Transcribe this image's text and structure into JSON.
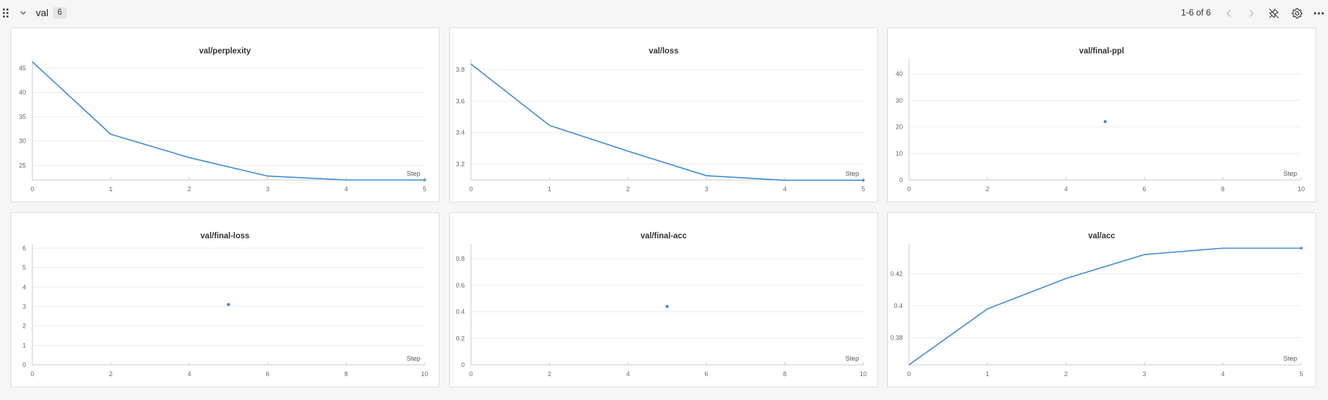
{
  "section": {
    "title": "val",
    "count": "6",
    "pagination": "1-6 of 6",
    "icons": {
      "drag": "drag-handle-icon",
      "collapse": "chevron-down-icon",
      "prev": "chevron-left-icon",
      "next": "chevron-right-icon",
      "pin": "pin-off-icon",
      "settings": "gear-icon",
      "more": "more-horizontal-icon"
    }
  },
  "colors": {
    "line": "#3b8ad9",
    "grid": "#ececec",
    "axis": "#c8c8c8",
    "text": "#666666"
  },
  "charts": [
    {
      "title": "val/perplexity",
      "chart_data": {
        "type": "line",
        "title": "val/perplexity",
        "xlabel": "Step",
        "ylabel": "",
        "xlim": [
          0,
          5
        ],
        "ylim": [
          22,
          46
        ],
        "xticks": [
          0,
          1,
          2,
          3,
          4,
          5
        ],
        "yticks": [
          25,
          30,
          35,
          40,
          45
        ],
        "series": [
          {
            "x": [
              0,
              1,
              2,
              3,
              4,
              5
            ],
            "values": [
              46.3,
              31.4,
              26.6,
              22.8,
              22.0,
              22.0
            ]
          }
        ]
      }
    },
    {
      "title": "val/loss",
      "chart_data": {
        "type": "line",
        "title": "val/loss",
        "xlabel": "Step",
        "ylabel": "",
        "xlim": [
          0,
          5
        ],
        "ylim": [
          3.1,
          3.84
        ],
        "xticks": [
          0,
          1,
          2,
          3,
          4,
          5
        ],
        "yticks": [
          3.2,
          3.4,
          3.6,
          3.8
        ],
        "ytick_labels": [
          "3.2",
          "3.4",
          "3.6",
          "3.8"
        ],
        "series": [
          {
            "x": [
              0,
              1,
              2,
              3,
              4,
              5
            ],
            "values": [
              3.835,
              3.446,
              3.283,
              3.127,
              3.098,
              3.098
            ]
          }
        ]
      }
    },
    {
      "title": "val/final-ppl",
      "chart_data": {
        "type": "scatter",
        "title": "val/final-ppl",
        "xlabel": "Step",
        "ylabel": "",
        "xlim": [
          0,
          10
        ],
        "ylim": [
          0,
          44
        ],
        "xticks": [
          0,
          2,
          4,
          6,
          8,
          10
        ],
        "yticks": [
          0,
          10,
          20,
          30,
          40
        ],
        "series": [
          {
            "x": [
              5
            ],
            "values": [
              22
            ]
          }
        ]
      }
    },
    {
      "title": "val/final-loss",
      "chart_data": {
        "type": "scatter",
        "title": "val/final-loss",
        "xlabel": "Step",
        "ylabel": "",
        "xlim": [
          0,
          10
        ],
        "ylim": [
          0,
          6
        ],
        "xticks": [
          0,
          2,
          4,
          6,
          8,
          10
        ],
        "yticks": [
          0,
          1,
          2,
          3,
          4,
          5,
          6
        ],
        "series": [
          {
            "x": [
              5
            ],
            "values": [
              3.1
            ]
          }
        ]
      }
    },
    {
      "title": "val/final-acc",
      "chart_data": {
        "type": "scatter",
        "title": "val/final-acc",
        "xlabel": "Step",
        "ylabel": "",
        "xlim": [
          0,
          10
        ],
        "ylim": [
          0,
          0.88
        ],
        "xticks": [
          0,
          2,
          4,
          6,
          8,
          10
        ],
        "yticks": [
          0,
          0.2,
          0.4,
          0.6,
          0.8
        ],
        "ytick_labels": [
          "0",
          "0.2",
          "0.4",
          "0.6",
          "0.8"
        ],
        "series": [
          {
            "x": [
              5
            ],
            "values": [
              0.44
            ]
          }
        ]
      }
    },
    {
      "title": "val/acc",
      "chart_data": {
        "type": "line",
        "title": "val/acc",
        "xlabel": "Step",
        "ylabel": "",
        "xlim": [
          0,
          5
        ],
        "ylim": [
          0.363,
          0.436
        ],
        "xticks": [
          0,
          1,
          2,
          3,
          4,
          5
        ],
        "yticks": [
          0.38,
          0.4,
          0.42
        ],
        "ytick_labels": [
          "0.38",
          "0.4",
          "0.42"
        ],
        "series": [
          {
            "x": [
              0,
              1,
              2,
              3,
              4,
              5
            ],
            "values": [
              0.363,
              0.398,
              0.417,
              0.432,
              0.436,
              0.436
            ]
          }
        ]
      }
    }
  ]
}
